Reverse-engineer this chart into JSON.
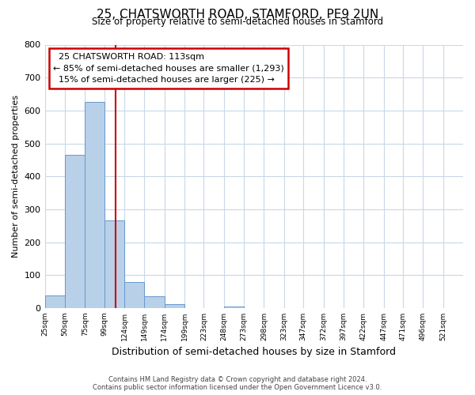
{
  "title": "25, CHATSWORTH ROAD, STAMFORD, PE9 2UN",
  "subtitle": "Size of property relative to semi-detached houses in Stamford",
  "xlabel": "Distribution of semi-detached houses by size in Stamford",
  "ylabel": "Number of semi-detached properties",
  "footer_line1": "Contains HM Land Registry data © Crown copyright and database right 2024.",
  "footer_line2": "Contains public sector information licensed under the Open Government Licence v3.0.",
  "bar_edges": [
    25,
    50,
    75,
    99,
    124,
    149,
    174,
    199,
    223,
    248,
    273,
    298,
    323,
    347,
    372,
    397,
    422,
    447,
    471,
    496,
    521
  ],
  "bar_heights": [
    38,
    465,
    625,
    265,
    80,
    35,
    12,
    0,
    0,
    5,
    0,
    0,
    0,
    0,
    0,
    0,
    0,
    0,
    0,
    0
  ],
  "bar_color": "#b8d0e8",
  "bar_edge_color": "#6699cc",
  "property_size": 113,
  "property_line_color": "#cc0000",
  "annotation_title": "25 CHATSWORTH ROAD: 113sqm",
  "annotation_line1": "← 85% of semi-detached houses are smaller (1,293)",
  "annotation_line2": "15% of semi-detached houses are larger (225) →",
  "annotation_box_color": "#cc0000",
  "ylim": [
    0,
    800
  ],
  "yticks": [
    0,
    100,
    200,
    300,
    400,
    500,
    600,
    700,
    800
  ],
  "tick_labels": [
    "25sqm",
    "50sqm",
    "75sqm",
    "99sqm",
    "124sqm",
    "149sqm",
    "174sqm",
    "199sqm",
    "223sqm",
    "248sqm",
    "273sqm",
    "298sqm",
    "323sqm",
    "347sqm",
    "372sqm",
    "397sqm",
    "422sqm",
    "447sqm",
    "471sqm",
    "496sqm",
    "521sqm"
  ],
  "background_color": "#ffffff",
  "grid_color": "#c8d8e8"
}
